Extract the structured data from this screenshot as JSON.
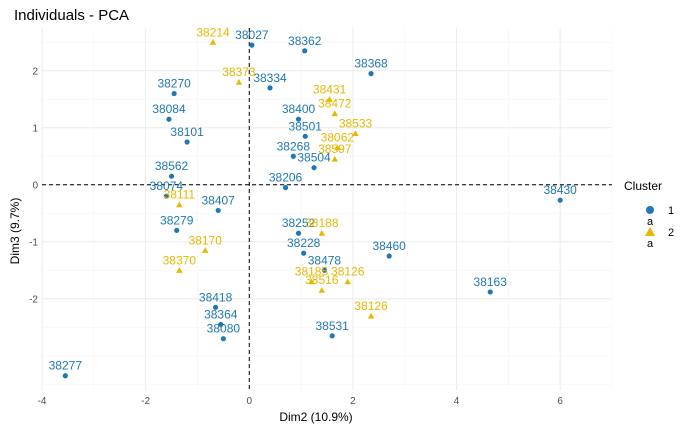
{
  "chart_data": {
    "type": "scatter",
    "title": "Individuals - PCA",
    "xlabel": "Dim2 (10.9%)",
    "ylabel": "Dim3 (9.7%)",
    "xlim": [
      -4.0,
      7.0
    ],
    "ylim": [
      -3.6,
      2.75
    ],
    "xticks": [
      -4,
      -2,
      0,
      2,
      4,
      6
    ],
    "yticks": [
      -2,
      -1,
      0,
      1,
      2
    ],
    "grid": true,
    "reference_lines": {
      "x": 0,
      "y": 0,
      "style": "dashed"
    },
    "legend": {
      "title": "Cluster",
      "position": "right",
      "entries": [
        "1",
        "2"
      ],
      "key_letter": "a"
    },
    "colors": {
      "1": "#1f78b4",
      "2": "#e6b800"
    },
    "series": [
      {
        "name": "1",
        "marker": "circle",
        "points": [
          {
            "label": "38027",
            "x": 0.05,
            "y": 2.45
          },
          {
            "label": "38362",
            "x": 1.07,
            "y": 2.35
          },
          {
            "label": "38368",
            "x": 2.35,
            "y": 1.95
          },
          {
            "label": "38270",
            "x": -1.45,
            "y": 1.6
          },
          {
            "label": "38334",
            "x": 0.4,
            "y": 1.7
          },
          {
            "label": "38084",
            "x": -1.55,
            "y": 1.15
          },
          {
            "label": "38400",
            "x": 0.95,
            "y": 1.15
          },
          {
            "label": "38501",
            "x": 1.08,
            "y": 0.85
          },
          {
            "label": "38101",
            "x": -1.2,
            "y": 0.75
          },
          {
            "label": "38268",
            "x": 0.85,
            "y": 0.5
          },
          {
            "label": "38504",
            "x": 1.25,
            "y": 0.3
          },
          {
            "label": "38430",
            "x": 6.0,
            "y": -0.27
          },
          {
            "label": "38562",
            "x": -1.5,
            "y": 0.15
          },
          {
            "label": "38074",
            "x": -1.6,
            "y": -0.2
          },
          {
            "label": "38407",
            "x": -0.6,
            "y": -0.45
          },
          {
            "label": "38206",
            "x": 0.7,
            "y": -0.05
          },
          {
            "label": "38279",
            "x": -1.4,
            "y": -0.8
          },
          {
            "label": "38252",
            "x": 0.95,
            "y": -0.85
          },
          {
            "label": "38460",
            "x": 2.7,
            "y": -1.25
          },
          {
            "label": "38228",
            "x": 1.05,
            "y": -1.2
          },
          {
            "label": "38478",
            "x": 1.45,
            "y": -1.5
          },
          {
            "label": "38163",
            "x": 4.65,
            "y": -1.88
          },
          {
            "label": "38418",
            "x": -0.65,
            "y": -2.15
          },
          {
            "label": "38364",
            "x": -0.55,
            "y": -2.45
          },
          {
            "label": "38080",
            "x": -0.5,
            "y": -2.7
          },
          {
            "label": "38531",
            "x": 1.6,
            "y": -2.65
          },
          {
            "label": "38277",
            "x": -3.55,
            "y": -3.35
          }
        ]
      },
      {
        "name": "2",
        "marker": "triangle",
        "points": [
          {
            "label": "38214",
            "x": -0.7,
            "y": 2.5
          },
          {
            "label": "38373",
            "x": -0.2,
            "y": 1.8
          },
          {
            "label": "38431",
            "x": 1.55,
            "y": 1.5
          },
          {
            "label": "38472",
            "x": 1.65,
            "y": 1.25
          },
          {
            "label": "38533",
            "x": 2.05,
            "y": 0.9
          },
          {
            "label": "38062",
            "x": 1.7,
            "y": 0.65
          },
          {
            "label": "38597",
            "x": 1.65,
            "y": 0.45
          },
          {
            "label": "38111",
            "x": -1.35,
            "y": -0.35
          },
          {
            "label": "38188",
            "x": 1.4,
            "y": -0.85
          },
          {
            "label": "38170",
            "x": -0.85,
            "y": -1.15
          },
          {
            "label": "38370",
            "x": -1.35,
            "y": -1.5
          },
          {
            "label": "38516",
            "x": 1.4,
            "y": -1.85
          },
          {
            "label": "38126",
            "x": 2.35,
            "y": -2.3
          },
          {
            "label": "38185",
            "x": 1.2,
            "y": -1.7
          },
          {
            "label": "38126b",
            "x": 1.9,
            "y": -1.7
          }
        ]
      }
    ]
  }
}
